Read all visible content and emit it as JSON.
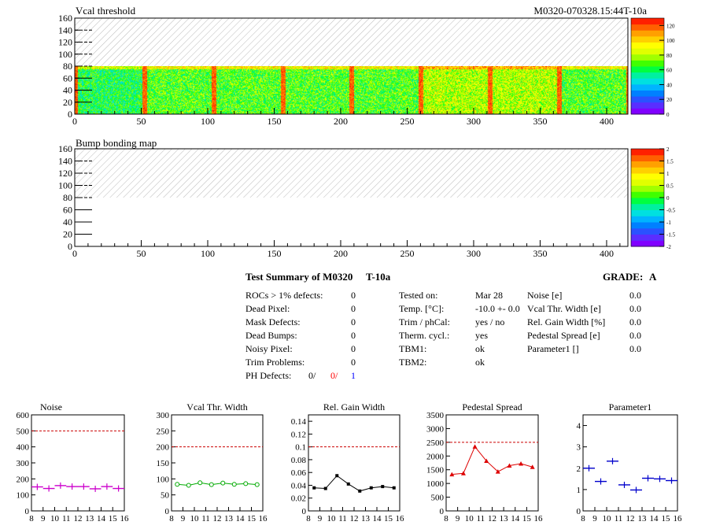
{
  "maps": {
    "vcal": {
      "title": "Vcal threshold",
      "module_label": "M0320-070328.15:44T-10a",
      "xlim": [
        0,
        416
      ],
      "ylim": [
        0,
        160
      ],
      "xticks": [
        "0",
        "50",
        "100",
        "150",
        "200",
        "250",
        "300",
        "350",
        "400"
      ],
      "yticks": [
        "0",
        "20",
        "40",
        "60",
        "80",
        "100",
        "120",
        "140",
        "160"
      ],
      "zticks": [
        "0",
        "20",
        "40",
        "60",
        "80",
        "100",
        "120"
      ],
      "z_range": [
        0,
        130
      ],
      "filled_rows": [
        0,
        80
      ]
    },
    "bump": {
      "title": "Bump bonding map",
      "xlim": [
        0,
        416
      ],
      "ylim": [
        0,
        160
      ],
      "xticks": [
        "0",
        "50",
        "100",
        "150",
        "200",
        "250",
        "300",
        "350",
        "400"
      ],
      "yticks": [
        "0",
        "20",
        "40",
        "60",
        "80",
        "100",
        "120",
        "140",
        "160"
      ],
      "zticks": [
        "-2",
        "-1.5",
        "-1",
        "-0.5",
        "0",
        "0.5",
        "1",
        "1.5",
        "2"
      ],
      "z_range": [
        -2,
        2
      ]
    }
  },
  "summary": {
    "title": "Test Summary of M0320",
    "temp_label": "T-10a",
    "grade_label": "GRADE:",
    "grade": "A",
    "defects": [
      {
        "label": "ROCs > 1% defects:",
        "value": "0"
      },
      {
        "label": "Dead Pixel:",
        "value": "0"
      },
      {
        "label": "Mask Defects:",
        "value": "0"
      },
      {
        "label": "Dead Bumps:",
        "value": "0"
      },
      {
        "label": "Noisy Pixel:",
        "value": "0"
      },
      {
        "label": "Trim Problems:",
        "value": "0"
      }
    ],
    "ph_label": "PH Defects:",
    "ph_values": [
      {
        "value": "0/",
        "color": "#000000"
      },
      {
        "value": "0/",
        "color": "#ff0000"
      },
      {
        "value": "1",
        "color": "#0000ff"
      }
    ],
    "conditions": [
      {
        "label": "Tested on:",
        "value": "Mar 28"
      },
      {
        "label": "Temp. [°C]:",
        "value": "-10.0 +- 0.0"
      },
      {
        "label": "Trim / phCal:",
        "value": "yes / no"
      },
      {
        "label": "Therm. cycl.:",
        "value": "yes"
      },
      {
        "label": "TBM1:",
        "value": "ok"
      },
      {
        "label": "TBM2:",
        "value": "ok"
      }
    ],
    "results": [
      {
        "label": "Noise [e]",
        "value": "0.0"
      },
      {
        "label": "Vcal Thr. Width [e]",
        "value": "0.0"
      },
      {
        "label": "Rel. Gain Width [%]",
        "value": "0.0"
      },
      {
        "label": "Pedestal Spread [e]",
        "value": "0.0"
      },
      {
        "label": "Parameter1 []",
        "value": "0.0"
      }
    ]
  },
  "chart_data": [
    {
      "type": "scatter",
      "title": "Noise",
      "x": [
        8,
        9,
        10,
        11,
        12,
        13,
        14,
        15
      ],
      "values": [
        150,
        140,
        158,
        152,
        152,
        138,
        152,
        140
      ],
      "xlim": [
        8,
        16
      ],
      "ylim": [
        0,
        600
      ],
      "xticks": [
        "8",
        "9",
        "10",
        "11",
        "12",
        "13",
        "14",
        "15",
        "16"
      ],
      "yticks": [
        "0",
        "100",
        "200",
        "300",
        "400",
        "500",
        "600"
      ],
      "threshold": 500,
      "color": "#cc00cc",
      "marker": "cross",
      "connect": false
    },
    {
      "type": "line",
      "title": "Vcal Thr. Width",
      "x": [
        8.5,
        9.5,
        10.5,
        11.5,
        12.5,
        13.5,
        14.5,
        15.5
      ],
      "values": [
        83,
        80,
        88,
        82,
        87,
        83,
        85,
        82
      ],
      "xlim": [
        8,
        16
      ],
      "ylim": [
        0,
        300
      ],
      "xticks": [
        "8",
        "9",
        "10",
        "11",
        "12",
        "13",
        "14",
        "15",
        "16"
      ],
      "yticks": [
        "0",
        "50",
        "100",
        "150",
        "200",
        "250",
        "300"
      ],
      "threshold": 200,
      "color": "#00aa00",
      "marker": "circle",
      "connect": true
    },
    {
      "type": "line",
      "title": "Rel. Gain Width",
      "x": [
        8.5,
        9.5,
        10.5,
        11.5,
        12.5,
        13.5,
        14.5,
        15.5
      ],
      "values": [
        0.036,
        0.035,
        0.055,
        0.042,
        0.031,
        0.036,
        0.038,
        0.036
      ],
      "xlim": [
        8,
        16
      ],
      "ylim": [
        0,
        0.15
      ],
      "xticks": [
        "8",
        "9",
        "10",
        "11",
        "12",
        "13",
        "14",
        "15",
        "16"
      ],
      "yticks": [
        "0",
        "0.02",
        "0.04",
        "0.06",
        "0.08",
        "0.1",
        "0.12",
        "0.14"
      ],
      "ytick_values": [
        0,
        0.02,
        0.04,
        0.06,
        0.08,
        0.1,
        0.12,
        0.14
      ],
      "threshold": 0.1,
      "color": "#000000",
      "marker": "square",
      "connect": true
    },
    {
      "type": "line",
      "title": "Pedestal Spread",
      "x": [
        8.5,
        9.5,
        10.5,
        11.5,
        12.5,
        13.5,
        14.5,
        15.5
      ],
      "values": [
        1330,
        1370,
        2340,
        1820,
        1430,
        1650,
        1720,
        1600
      ],
      "xlim": [
        8,
        16
      ],
      "ylim": [
        0,
        3500
      ],
      "xticks": [
        "8",
        "9",
        "10",
        "11",
        "12",
        "13",
        "14",
        "15",
        "16"
      ],
      "yticks": [
        "0",
        "500",
        "1000",
        "1500",
        "2000",
        "2500",
        "3000",
        "3500"
      ],
      "threshold": 2500,
      "color": "#dd0000",
      "marker": "triangle",
      "connect": true
    },
    {
      "type": "scatter",
      "title": "Parameter1",
      "x": [
        8,
        9,
        10,
        11,
        12,
        13,
        14,
        15
      ],
      "values": [
        2.0,
        1.38,
        2.33,
        1.22,
        0.98,
        1.53,
        1.5,
        1.42
      ],
      "xlim": [
        8,
        16
      ],
      "ylim": [
        0,
        4.5
      ],
      "xticks": [
        "8",
        "9",
        "10",
        "11",
        "12",
        "13",
        "14",
        "15",
        "16"
      ],
      "yticks": [
        "0",
        "1",
        "2",
        "3",
        "4"
      ],
      "ytick_values": [
        0,
        1,
        2,
        3,
        4
      ],
      "threshold": null,
      "color": "#0000cc",
      "marker": "cross",
      "connect": false
    }
  ]
}
